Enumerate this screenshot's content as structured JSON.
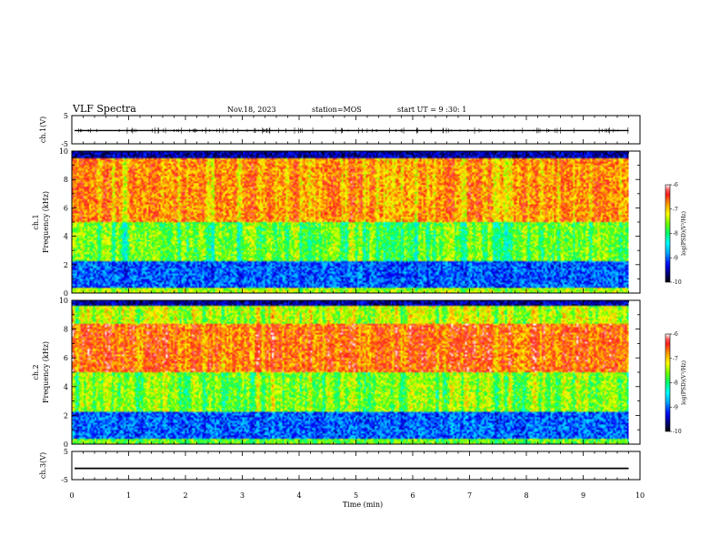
{
  "header": {
    "title": "VLF Spectra",
    "date": "Nov.18, 2023",
    "station": "station=MOS",
    "start": "start UT = 9 :30: 1"
  },
  "colors": {
    "scale": [
      "#000000",
      "#000080",
      "#0000ff",
      "#00bfff",
      "#00ffff",
      "#00ff66",
      "#66ff00",
      "#ffff00",
      "#ffa500",
      "#ff2020",
      "#ff6060",
      "#ffffff"
    ]
  },
  "chart_data": [
    {
      "type": "line",
      "name": "panel-ch1-amplitude",
      "ylabel": "ch.1(V)",
      "ylim": [
        -5,
        5
      ],
      "yticks": [
        "5",
        "-5"
      ],
      "xlim": [
        0,
        10
      ],
      "series": [
        {
          "values_level": -0.3
        }
      ]
    },
    {
      "type": "heatmap",
      "name": "panel-ch1-spectrogram",
      "ylabel": "ch.1\nFrequency (kHz)",
      "ylim": [
        0,
        10
      ],
      "yticks": [
        "0",
        "2",
        "4",
        "6",
        "8",
        "10"
      ],
      "xlim": [
        0,
        10
      ],
      "data_end_min": 9.8,
      "colorbar": {
        "label": "log(PSD)(V²/Hz)",
        "range": [
          -10,
          -6
        ],
        "ticks": [
          "-6",
          "-7",
          "-8",
          "-9",
          "-10"
        ]
      }
    },
    {
      "type": "heatmap",
      "name": "panel-ch2-spectrogram",
      "ylabel": "ch.2\nFrequency (kHz)",
      "ylim": [
        0,
        10
      ],
      "yticks": [
        "0",
        "2",
        "4",
        "6",
        "8",
        "10"
      ],
      "xlim": [
        0,
        10
      ],
      "data_end_min": 9.8,
      "colorbar": {
        "label": "log(PSD)(V²/Hz)",
        "range": [
          -10,
          -6
        ],
        "ticks": [
          "-6",
          "-7",
          "-8",
          "-9",
          "-10"
        ]
      }
    },
    {
      "type": "line",
      "name": "panel-ch3-amplitude",
      "ylabel": "ch.3(V)",
      "ylim": [
        -5,
        5
      ],
      "yticks": [
        "5",
        "-5"
      ],
      "xlim": [
        0,
        10
      ],
      "series": [
        {
          "values_level": -1.0
        }
      ]
    }
  ],
  "xaxis": {
    "label": "Time (min)",
    "ticks": [
      "0",
      "1",
      "2",
      "3",
      "4",
      "5",
      "6",
      "7",
      "8",
      "9",
      "10"
    ]
  }
}
